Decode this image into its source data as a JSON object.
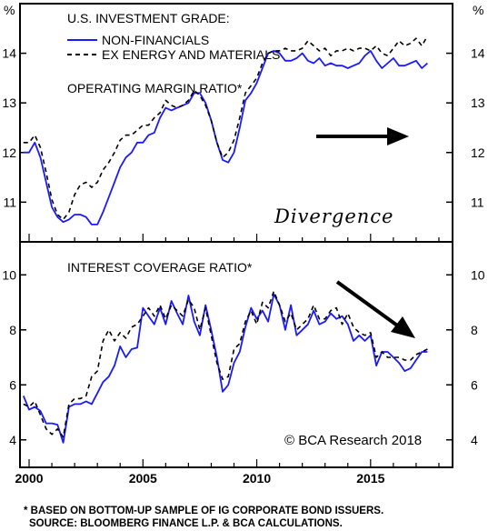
{
  "colors": {
    "non_financials": "#1a1aff",
    "ex_energy": "#000000",
    "background": "#ffffff",
    "axis": "#000000"
  },
  "chart_data": [
    {
      "type": "line",
      "title": "OPERATING MARGIN RATIO*",
      "header": "U.S. INVESTMENT GRADE:",
      "ylabel_left": "%",
      "ylabel_right": "%",
      "ylim": [
        10.2,
        15.0
      ],
      "yticks": [
        11,
        12,
        13,
        14
      ],
      "xlim": [
        1999.6,
        2018.6
      ],
      "grid": false,
      "legend_position": "top-left",
      "annotation": "Divergence",
      "x": [
        1999.75,
        2000.0,
        2000.25,
        2000.5,
        2000.75,
        2001.0,
        2001.25,
        2001.5,
        2001.75,
        2002.0,
        2002.25,
        2002.5,
        2002.75,
        2003.0,
        2003.25,
        2003.5,
        2003.75,
        2004.0,
        2004.25,
        2004.5,
        2004.75,
        2005.0,
        2005.25,
        2005.5,
        2005.75,
        2006.0,
        2006.25,
        2006.5,
        2006.75,
        2007.0,
        2007.25,
        2007.5,
        2007.75,
        2008.0,
        2008.25,
        2008.5,
        2008.75,
        2009.0,
        2009.25,
        2009.5,
        2009.75,
        2010.0,
        2010.25,
        2010.5,
        2010.75,
        2011.0,
        2011.25,
        2011.5,
        2011.75,
        2012.0,
        2012.25,
        2012.5,
        2012.75,
        2013.0,
        2013.25,
        2013.5,
        2013.75,
        2014.0,
        2014.25,
        2014.5,
        2014.75,
        2015.0,
        2015.25,
        2015.5,
        2015.75,
        2016.0,
        2016.25,
        2016.5,
        2016.75,
        2017.0,
        2017.25,
        2017.5
      ],
      "series": [
        {
          "name": "NON-FINANCIALS",
          "style": "solid",
          "values": [
            12.0,
            12.0,
            12.2,
            11.9,
            11.4,
            10.9,
            10.7,
            10.6,
            10.65,
            10.75,
            10.75,
            10.7,
            10.55,
            10.55,
            10.8,
            11.1,
            11.4,
            11.7,
            11.9,
            12.0,
            12.2,
            12.2,
            12.35,
            12.4,
            12.7,
            12.9,
            12.85,
            12.9,
            12.95,
            13.0,
            13.2,
            13.2,
            13.0,
            12.65,
            12.2,
            11.85,
            11.8,
            12.0,
            12.5,
            13.05,
            13.2,
            13.4,
            13.7,
            14.0,
            14.05,
            14.0,
            13.85,
            13.85,
            13.9,
            14.0,
            13.85,
            13.8,
            13.9,
            13.75,
            13.8,
            13.75,
            13.75,
            13.7,
            13.75,
            13.8,
            13.95,
            14.05,
            13.85,
            13.7,
            13.8,
            13.9,
            13.75,
            13.75,
            13.8,
            13.85,
            13.7,
            13.8
          ]
        },
        {
          "name": "EX ENERGY AND MATERIALS",
          "style": "dashed",
          "values": [
            12.2,
            12.2,
            12.35,
            12.1,
            11.6,
            11.05,
            10.75,
            10.65,
            10.8,
            11.15,
            11.35,
            11.4,
            11.3,
            11.4,
            11.65,
            11.8,
            12.0,
            12.25,
            12.35,
            12.35,
            12.45,
            12.55,
            12.55,
            12.7,
            12.8,
            13.05,
            12.95,
            12.9,
            12.95,
            13.05,
            13.25,
            13.15,
            12.95,
            12.65,
            12.2,
            11.9,
            12.0,
            12.25,
            12.7,
            13.2,
            13.35,
            13.5,
            13.8,
            14.0,
            14.05,
            14.05,
            14.1,
            14.05,
            14.05,
            14.1,
            14.25,
            14.15,
            14.05,
            14.1,
            13.95,
            14.05,
            14.05,
            14.1,
            14.05,
            14.1,
            14.1,
            14.05,
            14.15,
            14.0,
            13.95,
            14.1,
            14.25,
            14.15,
            14.2,
            14.3,
            14.15,
            14.35
          ]
        }
      ]
    },
    {
      "type": "line",
      "title": "INTEREST COVERAGE RATIO*",
      "ylim": [
        3.0,
        11.2
      ],
      "yticks": [
        4,
        6,
        8,
        10
      ],
      "xlim": [
        1999.6,
        2018.6
      ],
      "xticks": [
        2000,
        2005,
        2010,
        2015
      ],
      "grid": false,
      "x": [
        1999.75,
        2000.0,
        2000.25,
        2000.5,
        2000.75,
        2001.0,
        2001.25,
        2001.5,
        2001.75,
        2002.0,
        2002.25,
        2002.5,
        2002.75,
        2003.0,
        2003.25,
        2003.5,
        2003.75,
        2004.0,
        2004.25,
        2004.5,
        2004.75,
        2005.0,
        2005.25,
        2005.5,
        2005.75,
        2006.0,
        2006.25,
        2006.5,
        2006.75,
        2007.0,
        2007.25,
        2007.5,
        2007.75,
        2008.0,
        2008.25,
        2008.5,
        2008.75,
        2009.0,
        2009.25,
        2009.5,
        2009.75,
        2010.0,
        2010.25,
        2010.5,
        2010.75,
        2011.0,
        2011.25,
        2011.5,
        2011.75,
        2012.0,
        2012.25,
        2012.5,
        2012.75,
        2013.0,
        2013.25,
        2013.5,
        2013.75,
        2014.0,
        2014.25,
        2014.5,
        2014.75,
        2015.0,
        2015.25,
        2015.5,
        2015.75,
        2016.0,
        2016.25,
        2016.5,
        2016.75,
        2017.0,
        2017.25,
        2017.5
      ],
      "series": [
        {
          "name": "NON-FINANCIALS",
          "style": "solid",
          "values": [
            5.6,
            5.1,
            5.2,
            5.05,
            4.6,
            4.6,
            4.55,
            3.9,
            5.2,
            5.3,
            5.3,
            5.4,
            5.3,
            5.7,
            6.1,
            6.3,
            6.7,
            7.4,
            7.0,
            7.3,
            7.35,
            8.8,
            8.5,
            8.2,
            8.8,
            8.2,
            9.05,
            8.6,
            8.2,
            9.25,
            8.3,
            7.8,
            8.9,
            8.0,
            7.0,
            5.75,
            6.0,
            6.8,
            7.2,
            8.1,
            8.8,
            8.4,
            8.7,
            8.3,
            9.3,
            8.9,
            8.0,
            8.9,
            7.8,
            8.0,
            8.2,
            8.7,
            8.2,
            8.3,
            8.6,
            8.4,
            8.5,
            8.2,
            7.6,
            7.8,
            7.6,
            7.8,
            6.7,
            7.2,
            7.2,
            7.0,
            6.8,
            6.5,
            6.6,
            6.9,
            7.2,
            7.2
          ]
        },
        {
          "name": "EX ENERGY AND MATERIALS",
          "style": "dashed",
          "values": [
            5.3,
            5.2,
            5.4,
            4.9,
            4.4,
            4.2,
            4.4,
            4.1,
            5.3,
            5.5,
            5.5,
            5.6,
            6.3,
            6.5,
            7.6,
            8.0,
            7.6,
            7.9,
            7.7,
            8.1,
            8.2,
            8.5,
            8.8,
            8.5,
            8.9,
            8.4,
            8.9,
            8.7,
            8.5,
            9.1,
            8.8,
            8.0,
            8.8,
            7.8,
            6.8,
            6.2,
            6.3,
            7.3,
            7.5,
            8.3,
            8.7,
            8.2,
            9.0,
            8.8,
            9.4,
            8.9,
            8.3,
            8.6,
            8.0,
            8.2,
            8.4,
            8.9,
            8.4,
            8.4,
            8.7,
            8.8,
            8.2,
            8.6,
            8.1,
            7.9,
            7.8,
            7.9,
            7.0,
            7.2,
            7.0,
            7.0,
            7.0,
            6.9,
            6.9,
            7.1,
            7.2,
            7.3
          ]
        }
      ]
    }
  ],
  "watermark": "© BCA Research 2018",
  "footnotes": [
    "* BASED ON BOTTOM-UP SAMPLE OF IG CORPORATE BOND ISSUERS.",
    "SOURCE: BLOOMBERG FINANCE L.P. & BCA CALCULATIONS."
  ]
}
